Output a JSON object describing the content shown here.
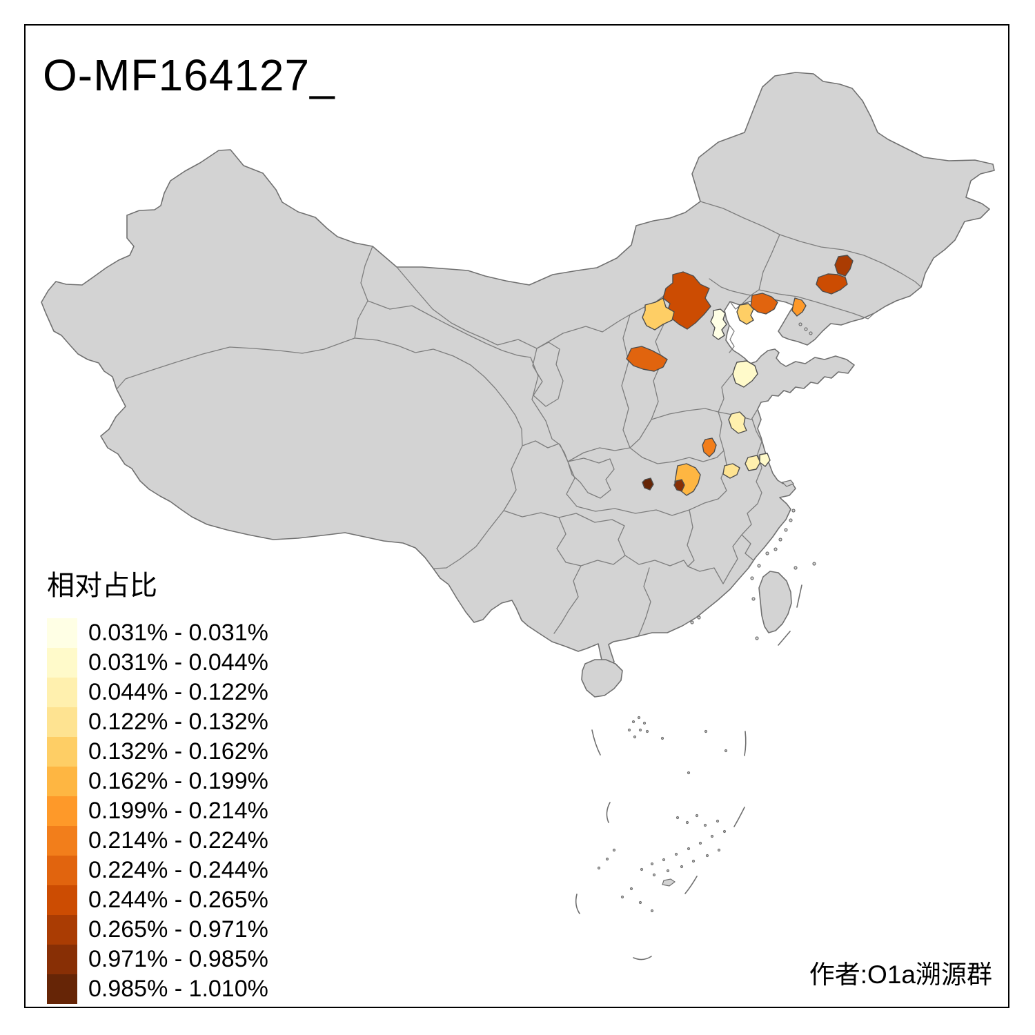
{
  "title": "O-MF164127_",
  "author_credit": "作者:O1a溯源群",
  "legend": {
    "title": "相对占比",
    "entries": [
      {
        "label": "0.031% - 0.031%",
        "color": "#FFFFE5"
      },
      {
        "label": "0.031% - 0.044%",
        "color": "#FFFACA"
      },
      {
        "label": "0.044% - 0.122%",
        "color": "#FFF0AE"
      },
      {
        "label": "0.122% - 0.132%",
        "color": "#FEE391"
      },
      {
        "label": "0.132% - 0.162%",
        "color": "#FECE65"
      },
      {
        "label": "0.162% - 0.199%",
        "color": "#FEB642"
      },
      {
        "label": "0.199% - 0.214%",
        "color": "#FE9929"
      },
      {
        "label": "0.214% - 0.224%",
        "color": "#F27E1B"
      },
      {
        "label": "0.224% - 0.244%",
        "color": "#E1640E"
      },
      {
        "label": "0.244% - 0.265%",
        "color": "#CC4C02"
      },
      {
        "label": "0.265% - 0.971%",
        "color": "#AA3C03"
      },
      {
        "label": "0.971% - 0.985%",
        "color": "#882F05"
      },
      {
        "label": "0.985% - 1.010%",
        "color": "#662506"
      }
    ]
  },
  "map": {
    "base_fill": "#D3D3D3",
    "border_color": "#7D7D7D",
    "sea_color": "#FFFFFF",
    "frame_color": "#000000",
    "regions": [
      {
        "id": "hebei-northwest",
        "class_index": 9,
        "range": "0.244% - 0.265%"
      },
      {
        "id": "shanxi-north",
        "class_index": 4,
        "range": "0.132% - 0.162%"
      },
      {
        "id": "beijing",
        "class_index": 0,
        "range": "0.031% - 0.031%"
      },
      {
        "id": "liaoning-west",
        "class_index": 8,
        "range": "0.224% - 0.244%"
      },
      {
        "id": "liaoning-southwest",
        "class_index": 4,
        "range": "0.132% - 0.162%"
      },
      {
        "id": "liaoning-central",
        "class_index": 6,
        "range": "0.199% - 0.214%"
      },
      {
        "id": "jilin-northeast",
        "class_index": 10,
        "range": "0.265% - 0.971%"
      },
      {
        "id": "jilin-central",
        "class_index": 9,
        "range": "0.244% - 0.265%"
      },
      {
        "id": "shanxi-central",
        "class_index": 8,
        "range": "0.224% - 0.244%"
      },
      {
        "id": "shandong-west",
        "class_index": 1,
        "range": "0.031% - 0.044%"
      },
      {
        "id": "jiangsu-northwest",
        "class_index": 2,
        "range": "0.044% - 0.122%"
      },
      {
        "id": "henan-southeast",
        "class_index": 7,
        "range": "0.214% - 0.224%"
      },
      {
        "id": "anhui-west",
        "class_index": 3,
        "range": "0.122% - 0.132%"
      },
      {
        "id": "anhui-central",
        "class_index": 2,
        "range": "0.044% - 0.122%"
      },
      {
        "id": "anhui-east",
        "class_index": 1,
        "range": "0.031% - 0.044%"
      },
      {
        "id": "hubei-east",
        "class_index": 5,
        "range": "0.162% - 0.199%"
      },
      {
        "id": "hubei-west-dark",
        "class_index": 12,
        "range": "0.985% - 1.010%"
      },
      {
        "id": "hubei-central-dark",
        "class_index": 11,
        "range": "0.971% - 0.985%"
      }
    ]
  }
}
